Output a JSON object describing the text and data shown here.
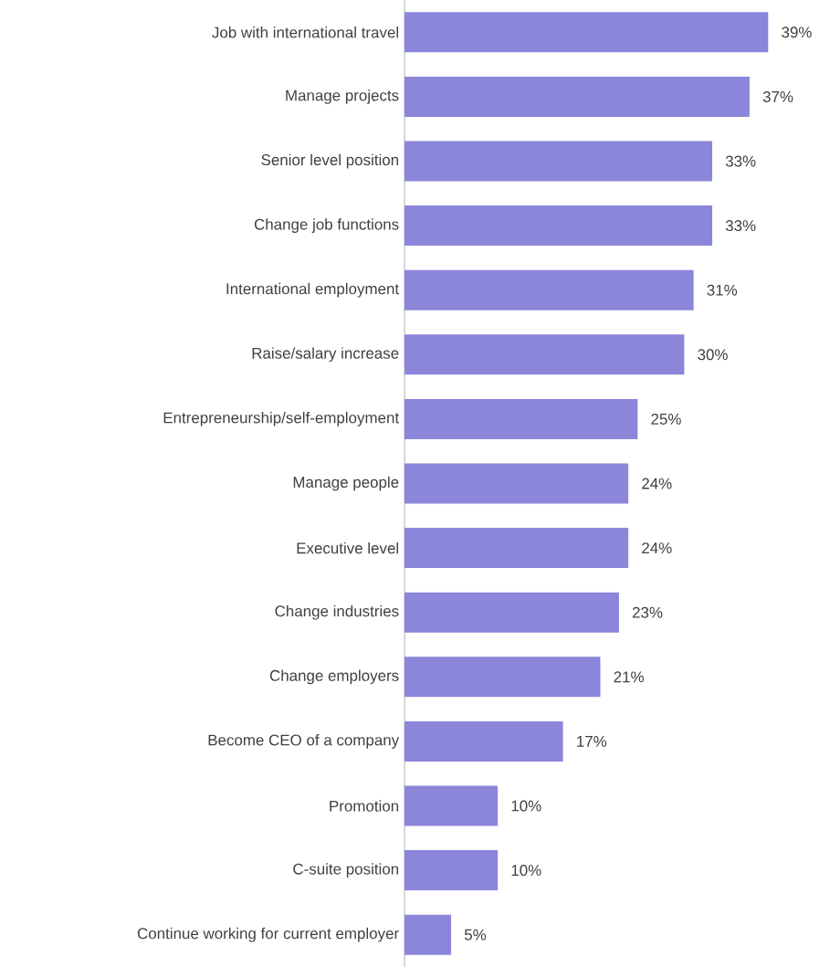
{
  "chart_data": {
    "type": "bar",
    "orientation": "horizontal",
    "color": "#8b86da",
    "tick_labels": "y",
    "categories": [
      "Job with international travel",
      "Manage projects",
      "Senior level position",
      "Change job functions",
      "International employment",
      "Raise/salary increase",
      "Entrepreneurship/self-employment",
      "Manage people",
      "Executive level",
      "Change industries",
      "Change employers",
      "Become CEO of a company",
      "Promotion",
      "C-suite position",
      "Continue working for current employer"
    ],
    "values": [
      39,
      37,
      33,
      33,
      31,
      30,
      25,
      24,
      24,
      23,
      21,
      17,
      10,
      10,
      5
    ],
    "value_labels": [
      "39%",
      "37%",
      "33%",
      "33%",
      "31%",
      "30%",
      "25%",
      "24%",
      "24%",
      "23%",
      "21%",
      "17%",
      "10%",
      "10%",
      "5%"
    ]
  }
}
